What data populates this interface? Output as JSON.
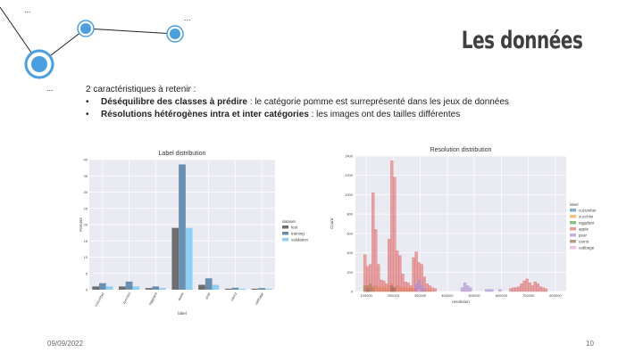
{
  "slide": {
    "title": "Les données",
    "intro": "2 caractéristiques à retenir :",
    "bullets": [
      {
        "bold": "Déséquilibre des classes à prédire",
        "rest": " : le catégorie pomme est surreprésenté dans les jeux de données"
      },
      {
        "bold": "Résolutions hétérogènes intra et inter catégories",
        "rest": " : les images ont des tailles différentes"
      }
    ],
    "footer_date": "09/09/2022",
    "page_number": "10",
    "bullet_glyph": "•",
    "ellipsis": "...",
    "accent_color": "#4a9fe0"
  },
  "chart_data": [
    {
      "type": "bar",
      "title": "Label distribution",
      "xlabel": "label",
      "ylabel": "Percent",
      "ylim": [
        0,
        40
      ],
      "yticks": [
        0,
        5,
        10,
        15,
        20,
        25,
        30,
        35,
        40
      ],
      "categories": [
        "cucumber",
        "zucchini",
        "eggplant",
        "apple",
        "pear",
        "carrot",
        "cabbage"
      ],
      "series": [
        {
          "name": "test",
          "color": "#6e6e6e",
          "values": [
            1,
            1,
            0.5,
            19,
            1.5,
            0.3,
            0.3
          ]
        },
        {
          "name": "training",
          "color": "#6a8fb0",
          "values": [
            2,
            2.5,
            1,
            38.5,
            3.5,
            0.6,
            0.5
          ]
        },
        {
          "name": "validation",
          "color": "#8ecff3",
          "values": [
            1,
            1,
            0.5,
            19,
            1.5,
            0.3,
            0.3
          ]
        }
      ],
      "legend_title": "dataset",
      "legend_position": "right",
      "grid": true
    },
    {
      "type": "bar",
      "title": "Resolution distribution",
      "xlabel": "resolution",
      "ylabel": "Count",
      "ylim": [
        0,
        1400
      ],
      "yticks": [
        0,
        200,
        400,
        600,
        800,
        1000,
        1200,
        1400
      ],
      "xlim": [
        60000,
        840000
      ],
      "xticks": [
        100000,
        200000,
        300000,
        400000,
        500000,
        600000,
        700000,
        800000
      ],
      "bin_width": 10000,
      "legend_title": "label",
      "legend_position": "right",
      "grid": true,
      "series": [
        {
          "name": "cucumber",
          "color": "#4c8fbf",
          "bins": [
            [
              100000,
              40
            ],
            [
              110000,
              30
            ]
          ]
        },
        {
          "name": "zucchini",
          "color": "#f0a544",
          "bins": [
            [
              90000,
              50
            ],
            [
              100000,
              60
            ],
            [
              110000,
              70
            ],
            [
              120000,
              40
            ],
            [
              130000,
              60
            ],
            [
              140000,
              50
            ],
            [
              150000,
              40
            ],
            [
              160000,
              50
            ],
            [
              170000,
              40
            ],
            [
              180000,
              60
            ],
            [
              190000,
              80
            ],
            [
              200000,
              40
            ],
            [
              210000,
              60
            ],
            [
              220000,
              50
            ],
            [
              230000,
              40
            ],
            [
              240000,
              40
            ],
            [
              250000,
              30
            ],
            [
              260000,
              40
            ],
            [
              270000,
              30
            ],
            [
              280000,
              40
            ],
            [
              290000,
              30
            ],
            [
              300000,
              20
            ],
            [
              310000,
              20
            ],
            [
              320000,
              20
            ],
            [
              330000,
              20
            ]
          ]
        },
        {
          "name": "eggplant",
          "color": "#54a854",
          "bins": [
            [
              90000,
              60
            ],
            [
              100000,
              60
            ],
            [
              110000,
              80
            ],
            [
              120000,
              50
            ],
            [
              190000,
              40
            ]
          ]
        },
        {
          "name": "apple",
          "color": "#e07070",
          "bins": [
            [
              90000,
              380
            ],
            [
              100000,
              260
            ],
            [
              110000,
              280
            ],
            [
              120000,
              1020
            ],
            [
              130000,
              640
            ],
            [
              140000,
              280
            ],
            [
              150000,
              120
            ],
            [
              160000,
              110
            ],
            [
              170000,
              80
            ],
            [
              180000,
              540
            ],
            [
              190000,
              1350
            ],
            [
              200000,
              1180
            ],
            [
              210000,
              420
            ],
            [
              220000,
              370
            ],
            [
              230000,
              180
            ],
            [
              240000,
              100
            ],
            [
              250000,
              90
            ],
            [
              260000,
              60
            ],
            [
              270000,
              350
            ],
            [
              280000,
              410
            ],
            [
              290000,
              300
            ],
            [
              300000,
              280
            ],
            [
              310000,
              150
            ],
            [
              320000,
              80
            ],
            [
              330000,
              60
            ],
            [
              340000,
              40
            ],
            [
              350000,
              30
            ],
            [
              630000,
              30
            ],
            [
              640000,
              40
            ],
            [
              650000,
              40
            ],
            [
              660000,
              50
            ],
            [
              670000,
              80
            ],
            [
              680000,
              110
            ],
            [
              690000,
              130
            ],
            [
              700000,
              90
            ],
            [
              710000,
              60
            ],
            [
              720000,
              100
            ],
            [
              730000,
              80
            ],
            [
              740000,
              50
            ],
            [
              750000,
              40
            ],
            [
              760000,
              30
            ]
          ]
        },
        {
          "name": "pear",
          "color": "#a98fd3",
          "bins": [
            [
              280000,
              80
            ],
            [
              290000,
              120
            ],
            [
              300000,
              60
            ],
            [
              310000,
              40
            ],
            [
              450000,
              40
            ],
            [
              460000,
              90
            ],
            [
              470000,
              60
            ],
            [
              480000,
              40
            ],
            [
              540000,
              20
            ],
            [
              550000,
              20
            ],
            [
              560000,
              20
            ],
            [
              590000,
              20
            ]
          ]
        },
        {
          "name": "carrot",
          "color": "#9a6e5e",
          "bins": [
            [
              100000,
              20
            ],
            [
              190000,
              60
            ],
            [
              200000,
              40
            ]
          ]
        },
        {
          "name": "cabbage",
          "color": "#e6a5d6",
          "bins": [
            [
              290000,
              20
            ],
            [
              460000,
              20
            ]
          ]
        }
      ]
    }
  ]
}
